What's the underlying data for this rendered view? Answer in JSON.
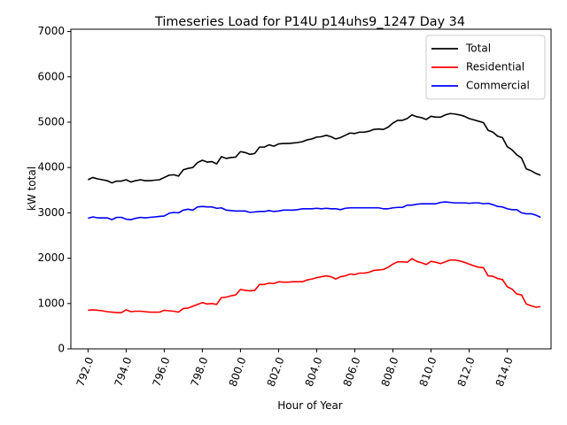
{
  "chart_data": {
    "type": "line",
    "title": "Timeseries Load for P14U p14uhs9_1247  Day 34",
    "xlabel": "Hour of Year",
    "ylabel": "kW total",
    "xlim": [
      791.1,
      816.3
    ],
    "ylim": [
      0,
      7050
    ],
    "x_ticks": [
      792,
      794,
      796,
      798,
      800,
      802,
      804,
      806,
      808,
      810,
      812,
      814
    ],
    "x_tick_labels": [
      "792.0",
      "794.0",
      "796.0",
      "798.0",
      "800.0",
      "802.0",
      "804.0",
      "806.0",
      "808.0",
      "810.0",
      "812.0",
      "814.0"
    ],
    "y_ticks": [
      0,
      1000,
      2000,
      3000,
      4000,
      5000,
      6000,
      7000
    ],
    "y_tick_labels": [
      "0",
      "1000",
      "2000",
      "3000",
      "4000",
      "5000",
      "6000",
      "7000"
    ],
    "legend_position": "top-right",
    "x": [
      792.0,
      792.25,
      792.5,
      792.75,
      793.0,
      793.25,
      793.5,
      793.75,
      794.0,
      794.25,
      794.5,
      794.75,
      795.0,
      795.25,
      795.5,
      795.75,
      796.0,
      796.25,
      796.5,
      796.75,
      797.0,
      797.25,
      797.5,
      797.75,
      798.0,
      798.25,
      798.5,
      798.75,
      799.0,
      799.25,
      799.5,
      799.75,
      800.0,
      800.25,
      800.5,
      800.75,
      801.0,
      801.25,
      801.5,
      801.75,
      802.0,
      802.25,
      802.5,
      802.75,
      803.0,
      803.25,
      803.5,
      803.75,
      804.0,
      804.25,
      804.5,
      804.75,
      805.0,
      805.25,
      805.5,
      805.75,
      806.0,
      806.25,
      806.5,
      806.75,
      807.0,
      807.25,
      807.5,
      807.75,
      808.0,
      808.25,
      808.5,
      808.75,
      809.0,
      809.25,
      809.5,
      809.75,
      810.0,
      810.25,
      810.5,
      810.75,
      811.0,
      811.25,
      811.5,
      811.75,
      812.0,
      812.25,
      812.5,
      812.75,
      813.0,
      813.25,
      813.5,
      813.75,
      814.0,
      814.25,
      814.5,
      814.75,
      815.0,
      815.25,
      815.5,
      815.75
    ],
    "series": [
      {
        "name": "Total",
        "color": "#000000",
        "values": [
          3730,
          3780,
          3750,
          3730,
          3710,
          3660,
          3700,
          3700,
          3730,
          3680,
          3710,
          3730,
          3710,
          3710,
          3720,
          3730,
          3780,
          3830,
          3840,
          3810,
          3950,
          3980,
          4000,
          4110,
          4160,
          4120,
          4130,
          4080,
          4240,
          4200,
          4220,
          4230,
          4350,
          4330,
          4290,
          4310,
          4450,
          4450,
          4500,
          4470,
          4520,
          4530,
          4530,
          4540,
          4550,
          4570,
          4610,
          4630,
          4670,
          4680,
          4710,
          4680,
          4630,
          4660,
          4710,
          4760,
          4750,
          4780,
          4780,
          4800,
          4840,
          4850,
          4840,
          4890,
          4980,
          5040,
          5040,
          5080,
          5160,
          5120,
          5100,
          5060,
          5130,
          5110,
          5110,
          5160,
          5190,
          5180,
          5160,
          5130,
          5080,
          5050,
          5020,
          4990,
          4820,
          4780,
          4690,
          4660,
          4460,
          4390,
          4280,
          4210,
          3970,
          3930,
          3870,
          3830
        ]
      },
      {
        "name": "Residential",
        "color": "#ff0000",
        "values": [
          850,
          860,
          850,
          840,
          820,
          810,
          800,
          800,
          860,
          820,
          830,
          830,
          820,
          810,
          810,
          810,
          850,
          840,
          830,
          810,
          890,
          900,
          940,
          980,
          1020,
          990,
          1000,
          980,
          1130,
          1140,
          1170,
          1190,
          1310,
          1290,
          1280,
          1290,
          1420,
          1420,
          1450,
          1440,
          1480,
          1470,
          1470,
          1480,
          1480,
          1480,
          1520,
          1540,
          1570,
          1590,
          1610,
          1590,
          1540,
          1590,
          1610,
          1650,
          1640,
          1670,
          1670,
          1690,
          1730,
          1740,
          1750,
          1800,
          1870,
          1920,
          1920,
          1910,
          1990,
          1930,
          1900,
          1860,
          1930,
          1910,
          1880,
          1920,
          1960,
          1960,
          1940,
          1910,
          1870,
          1830,
          1800,
          1790,
          1610,
          1600,
          1550,
          1530,
          1370,
          1320,
          1210,
          1190,
          990,
          950,
          920,
          930
        ]
      },
      {
        "name": "Commercial",
        "color": "#0000ff",
        "values": [
          2880,
          2910,
          2890,
          2890,
          2890,
          2850,
          2900,
          2900,
          2860,
          2850,
          2880,
          2900,
          2890,
          2900,
          2910,
          2920,
          2930,
          2990,
          3010,
          3000,
          3060,
          3080,
          3060,
          3130,
          3140,
          3130,
          3130,
          3100,
          3110,
          3060,
          3050,
          3040,
          3040,
          3040,
          3010,
          3020,
          3030,
          3030,
          3050,
          3030,
          3040,
          3060,
          3060,
          3060,
          3070,
          3090,
          3090,
          3090,
          3100,
          3090,
          3100,
          3090,
          3090,
          3070,
          3100,
          3110,
          3110,
          3110,
          3110,
          3110,
          3110,
          3110,
          3090,
          3090,
          3110,
          3120,
          3120,
          3170,
          3170,
          3190,
          3200,
          3200,
          3200,
          3200,
          3230,
          3240,
          3230,
          3220,
          3220,
          3220,
          3210,
          3220,
          3220,
          3200,
          3210,
          3180,
          3140,
          3130,
          3090,
          3070,
          3070,
          3000,
          2980,
          2980,
          2950,
          2900
        ]
      }
    ]
  }
}
